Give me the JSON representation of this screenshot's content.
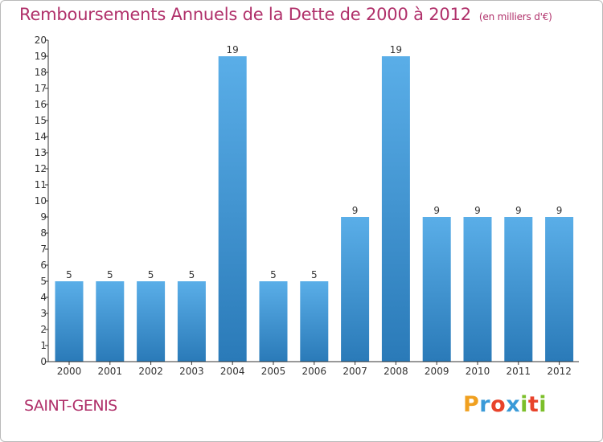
{
  "header": {
    "title": "Remboursements Annuels de la Dette de 2000 à 2012",
    "unit": "(en milliers d'€)"
  },
  "footer": {
    "place": "SAINT-GENIS",
    "logo_letters": [
      "P",
      "r",
      "o",
      "x",
      "i",
      "t",
      "i"
    ],
    "logo_colors": [
      "#f0a020",
      "#3a9ad8",
      "#e8432b",
      "#3a9ad8",
      "#7cbf2a",
      "#e8432b",
      "#7cbf2a"
    ]
  },
  "chart_data": {
    "type": "bar",
    "title": "Remboursements Annuels de la Dette de 2000 à 2012",
    "unit": "(en milliers d'€)",
    "categories": [
      "2000",
      "2001",
      "2002",
      "2003",
      "2004",
      "2005",
      "2006",
      "2007",
      "2008",
      "2009",
      "2010",
      "2011",
      "2012"
    ],
    "values": [
      5,
      5,
      5,
      5,
      19,
      5,
      5,
      9,
      19,
      9,
      9,
      9,
      9
    ],
    "data_labels": [
      "5",
      "5",
      "5",
      "5",
      "19",
      "5",
      "5",
      "9",
      "19",
      "9",
      "9",
      "9",
      "9"
    ],
    "ylim": [
      0,
      20
    ],
    "yticks": [
      "0",
      "1",
      "2",
      "3",
      "4",
      "5",
      "6",
      "7",
      "8",
      "9",
      "10",
      "11",
      "12",
      "13",
      "14",
      "15",
      "16",
      "17",
      "18",
      "19",
      "20"
    ],
    "grid": false,
    "legend": "none",
    "colors": {
      "bar_top": "#5aaee8",
      "bar_bottom": "#2a7ab8",
      "axis": "#333333",
      "text": "#333333"
    }
  }
}
